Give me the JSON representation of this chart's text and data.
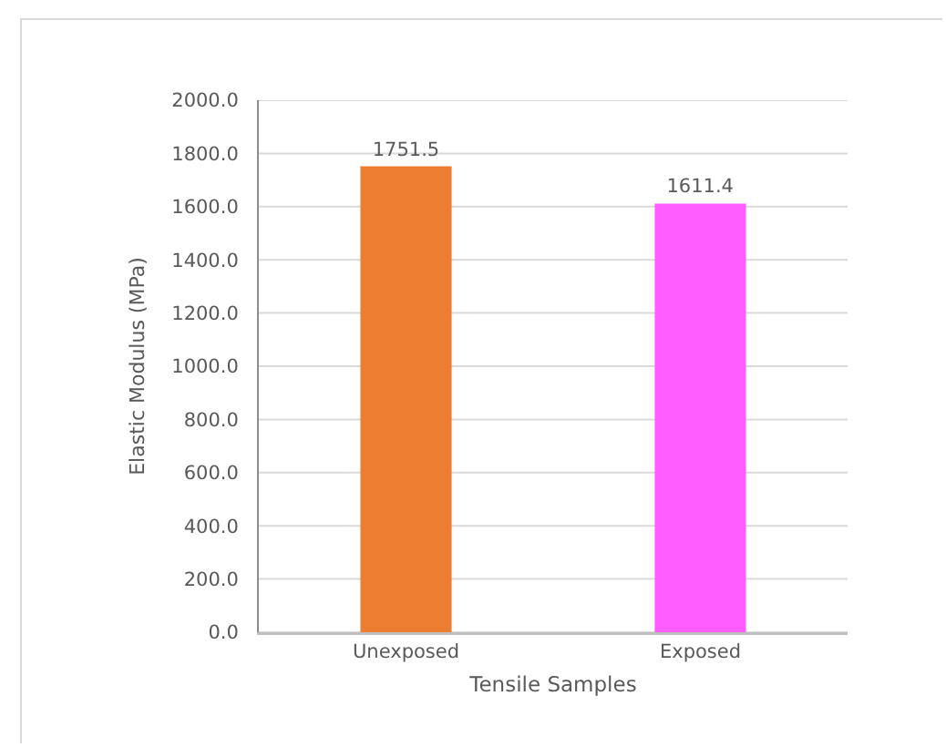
{
  "chart_data": {
    "type": "bar",
    "xlabel": "Tensile Samples",
    "ylabel": "Elastic Modulus (MPa)",
    "categories": [
      "Unexposed",
      "Exposed"
    ],
    "values": [
      1751.5,
      1611.4
    ],
    "colors": [
      "#ed7d31",
      "#ff5cff"
    ],
    "ylim": [
      0,
      2000
    ],
    "yticks": [
      {
        "value": 0,
        "label": "0.0"
      },
      {
        "value": 200,
        "label": "200.0"
      },
      {
        "value": 400,
        "label": "400.0"
      },
      {
        "value": 600,
        "label": "600.0"
      },
      {
        "value": 800,
        "label": "800.0"
      },
      {
        "value": 1000,
        "label": "1000.0"
      },
      {
        "value": 1200,
        "label": "1200.0"
      },
      {
        "value": 1400,
        "label": "1400.0"
      },
      {
        "value": 1600,
        "label": "1600.0"
      },
      {
        "value": 1800,
        "label": "1800.0"
      },
      {
        "value": 2000,
        "label": "2000.0"
      }
    ],
    "data_labels": true,
    "grid": "y"
  }
}
